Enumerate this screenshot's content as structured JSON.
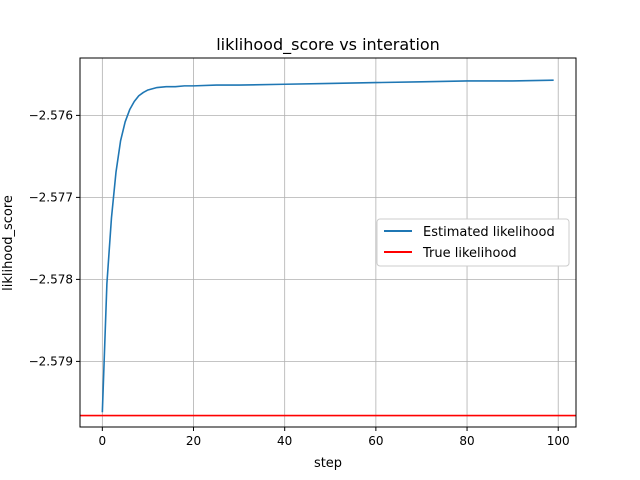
{
  "chart_data": {
    "type": "line",
    "title": "liklihood_score vs interation",
    "xlabel": "step",
    "ylabel": "liklihood_score",
    "xlim": [
      -4.9,
      103.9
    ],
    "ylim": [
      -2.5798,
      -2.5753
    ],
    "xticks": [
      0,
      20,
      40,
      60,
      80,
      100
    ],
    "xtick_labels": [
      "0",
      "20",
      "40",
      "60",
      "80",
      "100"
    ],
    "yticks": [
      -2.576,
      -2.577,
      -2.578,
      -2.579
    ],
    "ytick_labels": [
      "−2.576",
      "−2.577",
      "−2.578",
      "−2.579"
    ],
    "grid": true,
    "legend_position": "center-right",
    "series": [
      {
        "name": "Estimated likelihood",
        "color": "#1f77b4",
        "x": [
          0,
          1,
          2,
          3,
          4,
          5,
          6,
          7,
          8,
          9,
          10,
          12,
          14,
          16,
          18,
          20,
          25,
          30,
          40,
          50,
          60,
          70,
          80,
          90,
          99
        ],
        "y": [
          -2.57962,
          -2.57805,
          -2.57725,
          -2.57669,
          -2.57631,
          -2.57608,
          -2.57593,
          -2.57583,
          -2.57576,
          -2.57572,
          -2.57569,
          -2.57566,
          -2.57565,
          -2.57565,
          -2.57564,
          -2.57564,
          -2.57563,
          -2.57563,
          -2.57562,
          -2.57561,
          -2.5756,
          -2.57559,
          -2.57558,
          -2.57558,
          -2.57557
        ]
      },
      {
        "name": "True likelihood",
        "color": "#ff0000",
        "y_constant": -2.57966
      }
    ]
  }
}
